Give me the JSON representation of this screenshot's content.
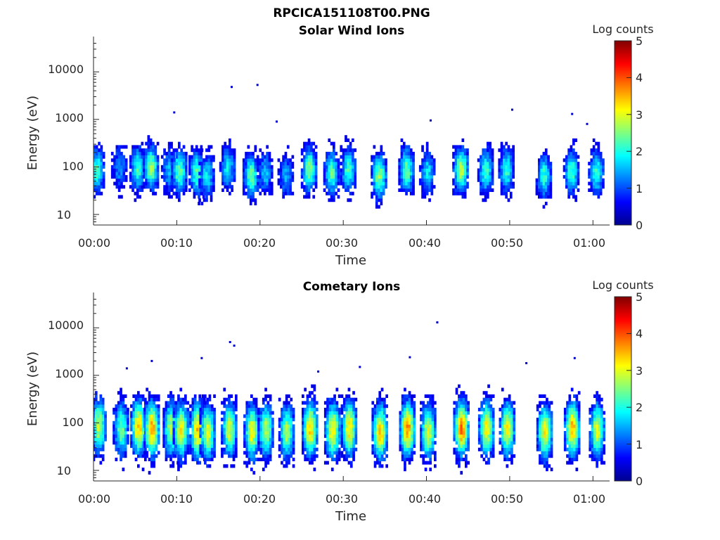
{
  "figure_title": "RPCICA151108T00.PNG",
  "colors": {
    "axis": "#262626",
    "colormap": "jet",
    "background": "#ffffff"
  },
  "chart_data": [
    {
      "type": "heatmap",
      "title": "Solar Wind Ions",
      "xlabel": "Time",
      "ylabel": "Energy (eV)",
      "y_scale": "log",
      "ylim": [
        6,
        45000
      ],
      "xlim_minutes": [
        0,
        62
      ],
      "x_ticks": [
        "00:00",
        "00:10",
        "00:20",
        "00:30",
        "00:40",
        "00:50",
        "01:00"
      ],
      "y_ticks": [
        "10",
        "100",
        "1000",
        "10000"
      ],
      "colorbar": {
        "label": "Log counts",
        "range": [
          0,
          5
        ],
        "ticks": [
          "0",
          "1",
          "2",
          "3",
          "4",
          "5"
        ]
      },
      "grid": false,
      "bursts": [
        {
          "t": 0.3,
          "e": 80,
          "peak": 2.2
        },
        {
          "t": 3.0,
          "e": 90,
          "peak": 1.4
        },
        {
          "t": 5.2,
          "e": 85,
          "peak": 2.2
        },
        {
          "t": 6.8,
          "e": 90,
          "peak": 2.6
        },
        {
          "t": 9.0,
          "e": 80,
          "peak": 1.6
        },
        {
          "t": 10.2,
          "e": 75,
          "peak": 2.4
        },
        {
          "t": 12.3,
          "e": 70,
          "peak": 2.3
        },
        {
          "t": 13.5,
          "e": 60,
          "peak": 1.8
        },
        {
          "t": 16.0,
          "e": 90,
          "peak": 1.8
        },
        {
          "t": 18.8,
          "e": 60,
          "peak": 2.4
        },
        {
          "t": 20.5,
          "e": 70,
          "peak": 1.6
        },
        {
          "t": 23.0,
          "e": 60,
          "peak": 1.4
        },
        {
          "t": 25.8,
          "e": 80,
          "peak": 2.6
        },
        {
          "t": 28.5,
          "e": 70,
          "peak": 2.3
        },
        {
          "t": 30.5,
          "e": 80,
          "peak": 2.2
        },
        {
          "t": 34.2,
          "e": 60,
          "peak": 2.6
        },
        {
          "t": 37.5,
          "e": 80,
          "peak": 2.4
        },
        {
          "t": 40.0,
          "e": 70,
          "peak": 1.8
        },
        {
          "t": 44.0,
          "e": 80,
          "peak": 2.8
        },
        {
          "t": 47.0,
          "e": 75,
          "peak": 2.2
        },
        {
          "t": 49.5,
          "e": 80,
          "peak": 2.1
        },
        {
          "t": 54.0,
          "e": 60,
          "peak": 2.1
        },
        {
          "t": 57.3,
          "e": 75,
          "peak": 2.2
        },
        {
          "t": 60.3,
          "e": 70,
          "peak": 2.1
        }
      ],
      "sparse_dots": [
        {
          "t": 16.6,
          "e": 4800
        },
        {
          "t": 19.7,
          "e": 5300
        },
        {
          "t": 9.7,
          "e": 1400
        },
        {
          "t": 50.3,
          "e": 1600
        },
        {
          "t": 57.5,
          "e": 1300
        },
        {
          "t": 22.0,
          "e": 900
        },
        {
          "t": 40.5,
          "e": 950
        },
        {
          "t": 59.3,
          "e": 800
        }
      ]
    },
    {
      "type": "heatmap",
      "title": "Cometary Ions",
      "xlabel": "Time",
      "ylabel": "Energy (eV)",
      "y_scale": "log",
      "ylim": [
        6,
        45000
      ],
      "xlim_minutes": [
        0,
        62
      ],
      "x_ticks": [
        "00:00",
        "00:10",
        "00:20",
        "00:30",
        "00:40",
        "00:50",
        "01:00"
      ],
      "y_ticks": [
        "10",
        "100",
        "1000",
        "10000"
      ],
      "colorbar": {
        "label": "Log counts",
        "range": [
          0,
          5
        ],
        "ticks": [
          "0",
          "1",
          "2",
          "3",
          "4",
          "5"
        ]
      },
      "grid": false,
      "bursts": [
        {
          "t": 0.5,
          "e": 80,
          "peak": 2.8
        },
        {
          "t": 3.2,
          "e": 70,
          "peak": 2.4
        },
        {
          "t": 5.3,
          "e": 75,
          "peak": 3.4
        },
        {
          "t": 6.9,
          "e": 70,
          "peak": 3.6
        },
        {
          "t": 9.2,
          "e": 70,
          "peak": 2.8
        },
        {
          "t": 10.4,
          "e": 65,
          "peak": 3.2
        },
        {
          "t": 12.4,
          "e": 65,
          "peak": 3.5
        },
        {
          "t": 13.6,
          "e": 60,
          "peak": 3.0
        },
        {
          "t": 16.2,
          "e": 70,
          "peak": 2.9
        },
        {
          "t": 18.9,
          "e": 60,
          "peak": 3.1
        },
        {
          "t": 20.6,
          "e": 65,
          "peak": 2.8
        },
        {
          "t": 23.1,
          "e": 60,
          "peak": 2.7
        },
        {
          "t": 25.9,
          "e": 70,
          "peak": 3.4
        },
        {
          "t": 28.6,
          "e": 65,
          "peak": 3.3
        },
        {
          "t": 30.6,
          "e": 70,
          "peak": 3.3
        },
        {
          "t": 34.3,
          "e": 60,
          "peak": 3.4
        },
        {
          "t": 37.6,
          "e": 70,
          "peak": 3.7
        },
        {
          "t": 40.1,
          "e": 60,
          "peak": 3.0
        },
        {
          "t": 44.1,
          "e": 70,
          "peak": 3.8
        },
        {
          "t": 47.1,
          "e": 70,
          "peak": 3.2
        },
        {
          "t": 49.6,
          "e": 70,
          "peak": 3.2
        },
        {
          "t": 54.1,
          "e": 60,
          "peak": 3.2
        },
        {
          "t": 57.4,
          "e": 70,
          "peak": 3.5
        },
        {
          "t": 60.4,
          "e": 65,
          "peak": 3.0
        }
      ],
      "sparse_dots": [
        {
          "t": 41.3,
          "e": 13000
        },
        {
          "t": 16.4,
          "e": 5000
        },
        {
          "t": 16.9,
          "e": 4200
        },
        {
          "t": 13.0,
          "e": 2300
        },
        {
          "t": 38.0,
          "e": 2400
        },
        {
          "t": 57.8,
          "e": 2300
        },
        {
          "t": 32.0,
          "e": 1500
        },
        {
          "t": 27.0,
          "e": 1200
        },
        {
          "t": 52.0,
          "e": 1800
        },
        {
          "t": 4.0,
          "e": 1400
        },
        {
          "t": 7.0,
          "e": 2000
        }
      ]
    }
  ]
}
